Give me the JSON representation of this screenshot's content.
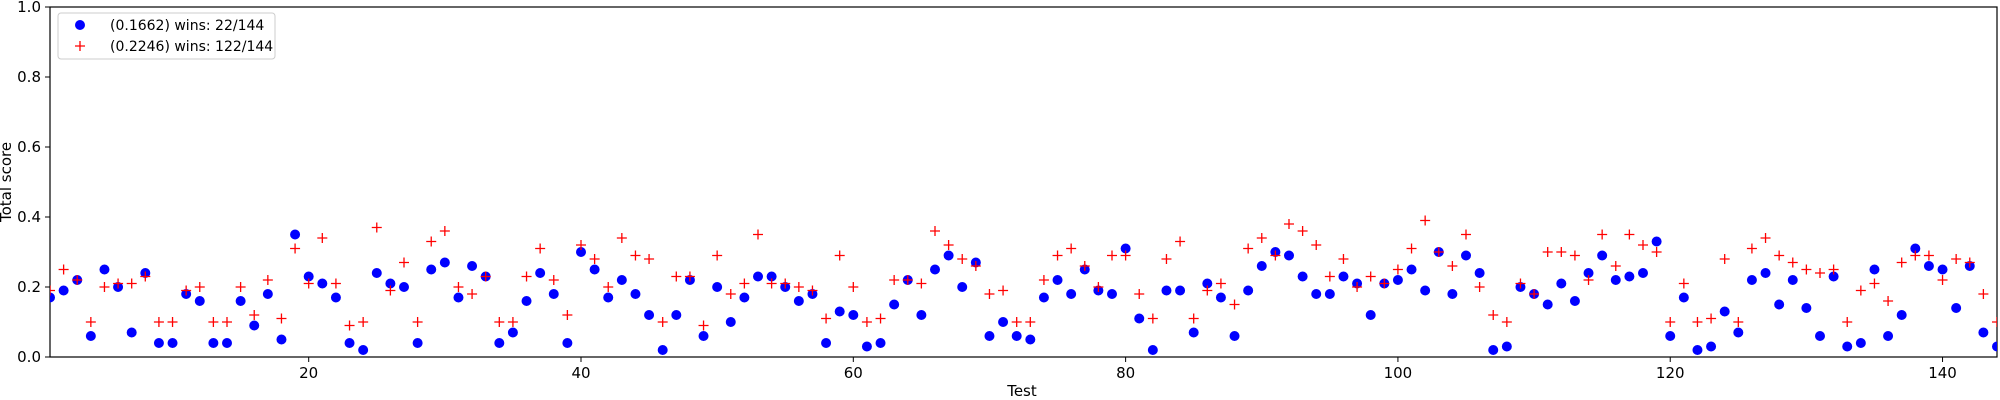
{
  "chart_data": {
    "type": "scatter",
    "title": "",
    "xlabel": "Test",
    "ylabel": "Total score",
    "xlim": [
      1,
      144
    ],
    "ylim": [
      0.0,
      1.0
    ],
    "xticks": [
      20,
      40,
      60,
      80,
      100,
      120,
      140
    ],
    "yticks": [
      0.0,
      0.2,
      0.4,
      0.6,
      0.8,
      1.0
    ],
    "ytick_labels": [
      "0.0",
      "0.2",
      "0.4",
      "0.6",
      "0.8",
      "1.0"
    ],
    "grid": false,
    "legend_position": "top-left",
    "x": [
      1,
      2,
      3,
      4,
      5,
      6,
      7,
      8,
      9,
      10,
      11,
      12,
      13,
      14,
      15,
      16,
      17,
      18,
      19,
      20,
      21,
      22,
      23,
      24,
      25,
      26,
      27,
      28,
      29,
      30,
      31,
      32,
      33,
      34,
      35,
      36,
      37,
      38,
      39,
      40,
      41,
      42,
      43,
      44,
      45,
      46,
      47,
      48,
      49,
      50,
      51,
      52,
      53,
      54,
      55,
      56,
      57,
      58,
      59,
      60,
      61,
      62,
      63,
      64,
      65,
      66,
      67,
      68,
      69,
      70,
      71,
      72,
      73,
      74,
      75,
      76,
      77,
      78,
      79,
      80,
      81,
      82,
      83,
      84,
      85,
      86,
      87,
      88,
      89,
      90,
      91,
      92,
      93,
      94,
      95,
      96,
      97,
      98,
      99,
      100,
      101,
      102,
      103,
      104,
      105,
      106,
      107,
      108,
      109,
      110,
      111,
      112,
      113,
      114,
      115,
      116,
      117,
      118,
      119,
      120,
      121,
      122,
      123,
      124,
      125,
      126,
      127,
      128,
      129,
      130,
      131,
      132,
      133,
      134,
      135,
      136,
      137,
      138,
      139,
      140,
      141,
      142,
      143,
      144
    ],
    "series": [
      {
        "name": "(0.1662) wins: 22/144",
        "marker": "circle",
        "color": "#0000ff",
        "values": [
          0.17,
          0.19,
          0.22,
          0.06,
          0.25,
          0.2,
          0.07,
          0.24,
          0.04,
          0.04,
          0.18,
          0.16,
          0.04,
          0.04,
          0.16,
          0.09,
          0.18,
          0.05,
          0.35,
          0.23,
          0.21,
          0.17,
          0.04,
          0.02,
          0.24,
          0.21,
          0.2,
          0.04,
          0.25,
          0.27,
          0.17,
          0.26,
          0.23,
          0.04,
          0.07,
          0.16,
          0.24,
          0.18,
          0.04,
          0.3,
          0.25,
          0.17,
          0.22,
          0.18,
          0.12,
          0.02,
          0.12,
          0.22,
          0.06,
          0.2,
          0.1,
          0.17,
          0.23,
          0.23,
          0.2,
          0.16,
          0.18,
          0.04,
          0.13,
          0.12,
          0.03,
          0.04,
          0.15,
          0.22,
          0.12,
          0.25,
          0.29,
          0.2,
          0.27,
          0.06,
          0.1,
          0.06,
          0.05,
          0.17,
          0.22,
          0.18,
          0.25,
          0.19,
          0.18,
          0.31,
          0.11,
          0.02,
          0.19,
          0.19,
          0.07,
          0.21,
          0.17,
          0.06,
          0.19,
          0.26,
          0.3,
          0.29,
          0.23,
          0.18,
          0.18,
          0.23,
          0.21,
          0.12,
          0.21,
          0.22,
          0.25,
          0.19,
          0.3,
          0.18,
          0.29,
          0.24,
          0.02,
          0.03,
          0.2,
          0.18,
          0.15,
          0.21,
          0.16,
          0.24,
          0.29,
          0.22,
          0.23,
          0.24,
          0.33,
          0.06,
          0.17,
          0.02,
          0.03,
          0.13,
          0.07,
          0.22,
          0.24,
          0.15,
          0.22,
          0.14,
          0.06,
          0.23,
          0.03,
          0.04,
          0.25,
          0.06,
          0.12,
          0.31,
          0.26,
          0.25,
          0.14,
          0.26,
          0.07,
          0.03
        ]
      },
      {
        "name": "(0.2246) wins: 122/144",
        "marker": "plus",
        "color": "#ff0000",
        "values": [
          0.19,
          0.25,
          0.22,
          0.1,
          0.2,
          0.21,
          0.21,
          0.23,
          0.1,
          0.1,
          0.19,
          0.2,
          0.1,
          0.1,
          0.2,
          0.12,
          0.22,
          0.11,
          0.31,
          0.21,
          0.34,
          0.21,
          0.09,
          0.1,
          0.37,
          0.19,
          0.27,
          0.1,
          0.33,
          0.36,
          0.2,
          0.18,
          0.23,
          0.1,
          0.1,
          0.23,
          0.31,
          0.22,
          0.12,
          0.32,
          0.28,
          0.2,
          0.34,
          0.29,
          0.28,
          0.1,
          0.23,
          0.23,
          0.09,
          0.29,
          0.18,
          0.21,
          0.35,
          0.21,
          0.21,
          0.2,
          0.19,
          0.11,
          0.29,
          0.2,
          0.1,
          0.11,
          0.22,
          0.22,
          0.21,
          0.36,
          0.32,
          0.28,
          0.26,
          0.18,
          0.19,
          0.1,
          0.1,
          0.22,
          0.29,
          0.31,
          0.26,
          0.2,
          0.29,
          0.29,
          0.18,
          0.11,
          0.28,
          0.33,
          0.11,
          0.19,
          0.21,
          0.15,
          0.31,
          0.34,
          0.29,
          0.38,
          0.36,
          0.32,
          0.23,
          0.28,
          0.2,
          0.23,
          0.21,
          0.25,
          0.31,
          0.39,
          0.3,
          0.26,
          0.35,
          0.2,
          0.12,
          0.1,
          0.21,
          0.18,
          0.3,
          0.3,
          0.29,
          0.22,
          0.35,
          0.26,
          0.35,
          0.32,
          0.3,
          0.1,
          0.21,
          0.1,
          0.11,
          0.28,
          0.1,
          0.31,
          0.34,
          0.29,
          0.27,
          0.25,
          0.24,
          0.25,
          0.1,
          0.19,
          0.21,
          0.16,
          0.27,
          0.29,
          0.29,
          0.22,
          0.28,
          0.27,
          0.18,
          0.1
        ]
      }
    ]
  }
}
